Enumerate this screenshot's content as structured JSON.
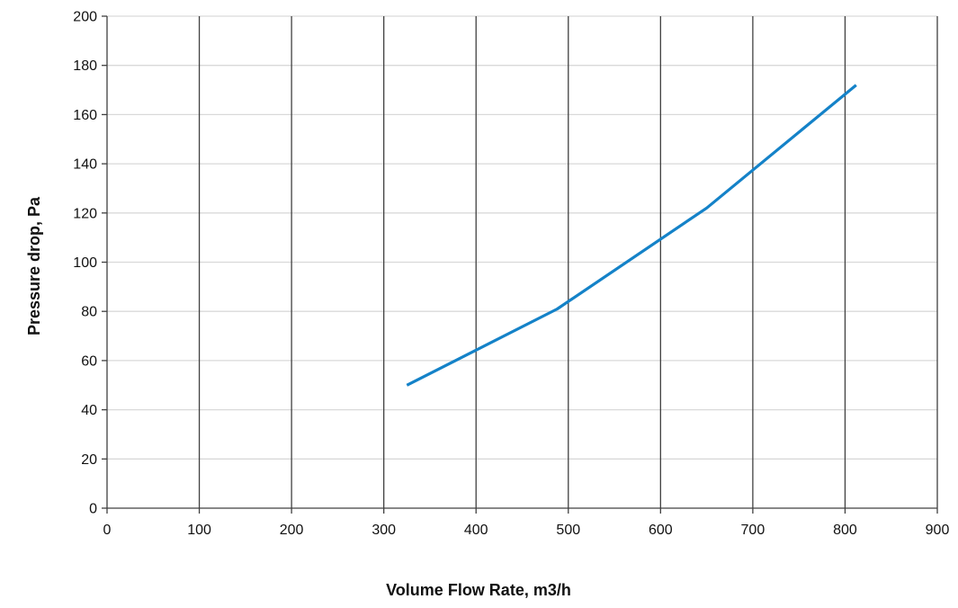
{
  "chart_data": {
    "type": "line",
    "title": "",
    "xlabel": "Volume Flow Rate, m3/h",
    "ylabel": "Pressure drop, Pa",
    "xlim": [
      0,
      900
    ],
    "ylim": [
      0,
      200
    ],
    "x_ticks": [
      0,
      100,
      200,
      300,
      400,
      500,
      600,
      700,
      800,
      900
    ],
    "y_ticks": [
      0,
      20,
      40,
      60,
      80,
      100,
      120,
      140,
      160,
      180,
      200
    ],
    "grid": {
      "horizontal": true,
      "vertical": true
    },
    "series": [
      {
        "color": "#1482C8",
        "points": [
          {
            "x": 325,
            "y": 50
          },
          {
            "x": 488,
            "y": 81
          },
          {
            "x": 650,
            "y": 122
          },
          {
            "x": 812,
            "y": 172
          }
        ]
      }
    ]
  },
  "colors": {
    "horizontal_grid": "#d9d9d9",
    "vertical_grid": "#404040",
    "axis": "#404040"
  }
}
